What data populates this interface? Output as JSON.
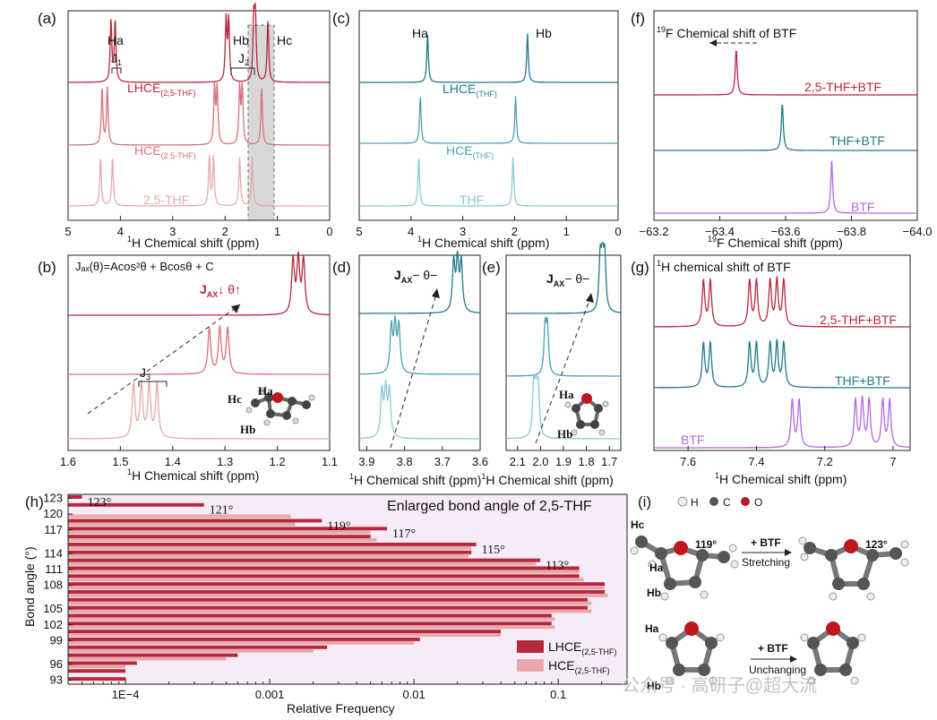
{
  "colors": {
    "red_dark": "#b5283a",
    "red_mid": "#d9707a",
    "red_light": "#e8a8ae",
    "teal_dark": "#1f7a8c",
    "teal_mid": "#4aa0b3",
    "teal_light": "#8cc9d6",
    "purple": "#b36ae0",
    "shade": "#d8d8d8",
    "pink_bg": "#f7ebf7"
  },
  "panels": {
    "a": {
      "label": "(a)",
      "xlabel_sup": "1",
      "xlabel": "H Chemical shift (ppm)",
      "peaks_top": [
        "Ha",
        "Hb",
        "Hc"
      ],
      "j1": "J",
      "j1_sub": "1",
      "j2": "J",
      "j2_sub": "2",
      "trace_labels": [
        {
          "main": "LHCE",
          "sub": "(2,5-THF)"
        },
        {
          "main": "HCE",
          "sub": "(2,5-THF)"
        },
        {
          "main": "2,5-THF",
          "sub": ""
        }
      ]
    },
    "b": {
      "label": "(b)",
      "equation": "Jₐₓ(θ)=Acos²θ + Bcosθ + C",
      "trend": "J",
      "trend_sub": "AX",
      "trend_tail": "↓ θ↑",
      "j3": "J",
      "j3_sub": "3",
      "mol_labels": [
        "Ha",
        "Hc",
        "Hb"
      ],
      "xlabel_sup": "1",
      "xlabel": "H Chemical shift (ppm)"
    },
    "c": {
      "label": "(c)",
      "peaks_top": [
        "Ha",
        "Hb"
      ],
      "trace_labels": [
        {
          "main": "LHCE",
          "sub": "(THF)"
        },
        {
          "main": "HCE",
          "sub": "(THF)"
        },
        {
          "main": "THF",
          "sub": ""
        }
      ],
      "xlabel_sup": "1",
      "xlabel": "H Chemical shift (ppm)"
    },
    "d": {
      "label": "(d)",
      "trend": "J",
      "trend_sub": "AX",
      "trend_tail": "−  θ−",
      "xlabel_sup": "1",
      "xlabel": "H Chemical shift (ppm)"
    },
    "e": {
      "label": "(e)",
      "trend": "J",
      "trend_sub": "AX",
      "trend_tail": "−  θ−",
      "mol_labels": [
        "Ha",
        "Hb"
      ],
      "xlabel_sup": "1",
      "xlabel": "H Chemical shift (ppm)"
    },
    "f": {
      "label": "(f)",
      "title_sup": "19",
      "title": "F Chemical shift of BTF",
      "trace_labels": [
        "2,5-THF+BTF",
        "THF+BTF",
        "BTF"
      ],
      "xlabel_sup": "19",
      "xlabel": "F Chemical shift (ppm)"
    },
    "g": {
      "label": "(g)",
      "title_sup": "1",
      "title": "H chemical shift of BTF",
      "trace_labels": [
        "2,5-THF+BTF",
        "THF+BTF",
        "BTF"
      ],
      "xlabel_sup": "1",
      "xlabel": "H Chemical shift (ppm)"
    },
    "i": {
      "label": "(i)",
      "legend": [
        "H",
        "C",
        "O"
      ],
      "row1": {
        "left_labels": [
          "Hc",
          "Ha",
          "Hb"
        ],
        "angle_left": "119°",
        "arrow_top": "+ BTF",
        "arrow_bottom": "Stretching",
        "angle_right": "123°"
      },
      "row2": {
        "left_labels": [
          "Ha",
          "Hb"
        ],
        "arrow_top": "+ BTF",
        "arrow_bottom": "Unchanging"
      }
    }
  },
  "watermark": "公众号 · 高研子@超大流",
  "chart_data": [
    {
      "type": "line",
      "panel": "(a)",
      "xlabel": "1H Chemical shift (ppm)",
      "xlim": [
        5,
        0
      ],
      "xticks": [
        5,
        4,
        3,
        2,
        1,
        0
      ],
      "series": [
        {
          "name": "LHCE(2,5-THF)",
          "peaks_ppm": [
            4.18,
            4.1,
            1.98,
            1.93,
            1.45,
            1.42,
            1.18
          ]
        },
        {
          "name": "HCE(2,5-THF)",
          "peaks_ppm": [
            4.35,
            4.25,
            2.2,
            2.15,
            1.72,
            1.67,
            1.3
          ]
        },
        {
          "name": "2,5-THF",
          "peaks_ppm": [
            4.38,
            4.15,
            2.3,
            2.22,
            1.72,
            1.48
          ]
        }
      ]
    },
    {
      "type": "line",
      "panel": "(b)",
      "xlabel": "1H Chemical shift (ppm)",
      "xlim": [
        1.6,
        1.1
      ],
      "xticks": [
        1.6,
        1.5,
        1.4,
        1.3,
        1.2,
        1.1
      ],
      "series": [
        {
          "name": "LHCE(2,5-THF)",
          "peaks_ppm": [
            1.17,
            1.16,
            1.15
          ]
        },
        {
          "name": "HCE(2,5-THF)",
          "peaks_ppm": [
            1.33,
            1.31,
            1.295
          ]
        },
        {
          "name": "2,5-THF",
          "peaks_ppm": [
            1.475,
            1.46,
            1.445,
            1.43
          ]
        }
      ]
    },
    {
      "type": "line",
      "panel": "(c)",
      "xlabel": "1H Chemical shift (ppm)",
      "xlim": [
        5,
        0
      ],
      "xticks": [
        5,
        4,
        3,
        2,
        1,
        0
      ],
      "series": [
        {
          "name": "LHCE(THF)",
          "peaks_ppm": [
            3.68,
            1.75
          ]
        },
        {
          "name": "HCE(THF)",
          "peaks_ppm": [
            3.82,
            1.98
          ]
        },
        {
          "name": "THF",
          "peaks_ppm": [
            3.85,
            2.03
          ]
        }
      ]
    },
    {
      "type": "line",
      "panel": "(d)",
      "xlabel": "1H Chemical shift (ppm)",
      "xlim": [
        3.92,
        3.6
      ],
      "xticks": [
        3.9,
        3.8,
        3.7,
        3.6
      ],
      "xtick_labels": [
        "3.9",
        "3.8",
        "3.7",
        "3.6"
      ],
      "series": [
        {
          "name": "LHCE(THF)",
          "peaks_ppm": [
            3.67,
            3.66,
            3.65
          ]
        },
        {
          "name": "HCE(THF)",
          "peaks_ppm": [
            3.835,
            3.825,
            3.815
          ]
        },
        {
          "name": "THF",
          "peaks_ppm": [
            3.86,
            3.85,
            3.84
          ]
        }
      ]
    },
    {
      "type": "line",
      "panel": "(e)",
      "xlabel": "1H Chemical shift (ppm)",
      "xlim": [
        2.15,
        1.65
      ],
      "xticks": [
        2.1,
        2.0,
        1.9,
        1.8,
        1.7
      ],
      "xtick_labels": [
        "2.1",
        "2.0",
        "1.9",
        "1.8",
        "1.7"
      ],
      "series": [
        {
          "name": "LHCE(THF)",
          "peaks_ppm": [
            1.74,
            1.73,
            1.72
          ]
        },
        {
          "name": "HCE(THF)",
          "peaks_ppm": [
            1.98,
            1.97
          ]
        },
        {
          "name": "THF",
          "peaks_ppm": [
            2.03,
            2.02,
            2.01
          ]
        }
      ]
    },
    {
      "type": "line",
      "panel": "(f)",
      "xlabel": "19F Chemical shift (ppm)",
      "xlim": [
        -63.2,
        -64.0
      ],
      "xticks": [
        -63.2,
        -63.4,
        -63.6,
        -63.8,
        -64.0
      ],
      "xtick_labels": [
        "−63.2",
        "−63.4",
        "−63.6",
        "−63.8",
        "−64.0"
      ],
      "series": [
        {
          "name": "2,5-THF+BTF",
          "peaks_ppm": [
            -63.45
          ]
        },
        {
          "name": "THF+BTF",
          "peaks_ppm": [
            -63.59
          ]
        },
        {
          "name": "BTF",
          "peaks_ppm": [
            -63.74
          ]
        }
      ]
    },
    {
      "type": "line",
      "panel": "(g)",
      "xlabel": "1H Chemical shift (ppm)",
      "xlim": [
        7.7,
        6.95
      ],
      "xticks": [
        7.6,
        7.4,
        7.2,
        7.0
      ],
      "series": [
        {
          "name": "2,5-THF+BTF",
          "peaks_ppm": [
            7.555,
            7.535,
            7.42,
            7.4,
            7.36,
            7.34,
            7.32
          ]
        },
        {
          "name": "THF+BTF",
          "peaks_ppm": [
            7.555,
            7.535,
            7.42,
            7.4,
            7.36,
            7.34,
            7.32
          ]
        },
        {
          "name": "BTF",
          "peaks_ppm": [
            7.295,
            7.275,
            7.11,
            7.09,
            7.07,
            7.03,
            7.01
          ]
        }
      ]
    },
    {
      "type": "bar",
      "panel": "(h)",
      "title": "Enlarged bond angle of 2,5-THF",
      "xlabel": "Relative Frequency",
      "ylabel": "Bond angle (°)",
      "xscale": "log",
      "xlim": [
        4e-05,
        0.3
      ],
      "xticks": [
        0.0001,
        0.001,
        0.01,
        0.1
      ],
      "xtick_labels": [
        "1E−4",
        "0.001",
        "0.01",
        "0.1"
      ],
      "categories": [
        123,
        121,
        120,
        119,
        117,
        116,
        115,
        114,
        113,
        111,
        110,
        108,
        107,
        106,
        105,
        104,
        102,
        100,
        99,
        98,
        97,
        96,
        95,
        93
      ],
      "ytick_labels": [
        "123",
        "120",
        "117",
        "114",
        "111",
        "108",
        "105",
        "102",
        "99",
        "96",
        "93"
      ],
      "series": [
        {
          "name": "LHCE(2,5-THF)",
          "values": [
            5e-05,
            0.00035,
            null,
            0.0023,
            0.0065,
            0.005,
            0.027,
            0.025,
            0.075,
            0.14,
            0.14,
            0.21,
            0.21,
            0.16,
            0.16,
            0.09,
            0.09,
            0.04,
            0.011,
            0.0025,
            0.0006,
            0.00012,
            0.0001,
            0.0001
          ]
        },
        {
          "name": "HCE(2,5-THF)",
          "values": [
            null,
            null,
            0.0014,
            0.0015,
            0.005,
            0.0055,
            0.025,
            0.024,
            0.07,
            0.14,
            0.15,
            0.21,
            0.22,
            0.17,
            0.17,
            0.095,
            0.095,
            0.04,
            0.01,
            0.002,
            0.0005,
            0.0001,
            null,
            null
          ]
        }
      ],
      "annotations": [
        "123°",
        "121°",
        "119°",
        "117°",
        "115°",
        "113°"
      ],
      "legend": [
        {
          "main": "LHCE",
          "sub": "(2,5-THF)"
        },
        {
          "main": "HCE",
          "sub": "(2,5-THF)"
        }
      ]
    }
  ]
}
